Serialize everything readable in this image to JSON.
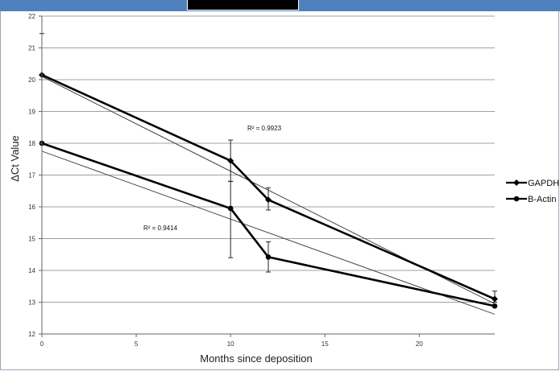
{
  "chart_data": {
    "type": "line",
    "xlabel": "Months since deposition",
    "ylabel": "ΔCt Value",
    "xlim": [
      0,
      24
    ],
    "ylim": [
      12,
      22
    ],
    "x_ticks": [
      0,
      5,
      10,
      15,
      20
    ],
    "y_ticks": [
      12,
      13,
      14,
      15,
      16,
      17,
      18,
      19,
      20,
      21,
      22
    ],
    "grid": "horizontal",
    "legend_position": "right",
    "series": [
      {
        "name": "GAPDH",
        "marker": "diamond",
        "x": [
          0,
          10,
          12,
          24
        ],
        "y": [
          20.15,
          17.45,
          16.22,
          13.1
        ],
        "error_low": [
          null,
          16.8,
          15.9,
          13.0
        ],
        "error_high": [
          21.45,
          18.1,
          16.6,
          13.35
        ],
        "trendline": {
          "x": [
            0,
            24
          ],
          "y": [
            20.1,
            12.95
          ]
        },
        "r2_label": "R² = 0.9923"
      },
      {
        "name": "B-Actin",
        "marker": "circle",
        "x": [
          0,
          10,
          12,
          24
        ],
        "y": [
          18.0,
          15.95,
          14.42,
          12.88
        ],
        "error_low": [
          null,
          14.4,
          13.95,
          null
        ],
        "error_high": [
          null,
          16.8,
          14.9,
          null
        ],
        "trendline": {
          "x": [
            0,
            24
          ],
          "y": [
            17.75,
            12.62
          ]
        },
        "r2_label": "R² = 0.9414"
      }
    ],
    "colors": {
      "series": "#000000",
      "trendline": "#333333",
      "grid": "#a0a0a0"
    }
  }
}
